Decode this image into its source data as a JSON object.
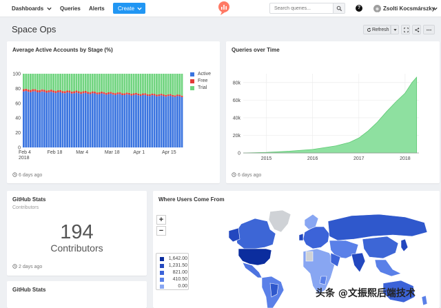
{
  "nav": {
    "dashboards_label": "Dashboards",
    "queries_label": "Queries",
    "alerts_label": "Alerts",
    "create_label": "Create",
    "search_placeholder": "Search queries...",
    "help_label": "?",
    "user_name": "Zsolti Kocsmárszky"
  },
  "page": {
    "title": "Space Ops",
    "refresh_label": "Refresh"
  },
  "colors": {
    "accent": "#2196f3",
    "active": "#3a74e0",
    "free": "#e23b37",
    "trial": "#70d47f",
    "area": "#8ee0a0"
  },
  "widgets": {
    "accounts": {
      "title": "Average Active Accounts by Stage (%)",
      "updated": "6 days ago"
    },
    "queries": {
      "title": "Queries over Time",
      "updated": "6 days ago"
    },
    "github1": {
      "title": "GitHub Stats",
      "subtitle": "Contributors",
      "value": "194",
      "value_label": "Contributors",
      "updated": "2 days ago"
    },
    "users_map": {
      "title": "Where Users Come From",
      "zoom_in": "+",
      "zoom_out": "−",
      "scale": [
        "1,642.00",
        "1,231.50",
        "821.00",
        "410.50",
        "0.00"
      ],
      "scale_colors": [
        "#0b2d9e",
        "#2348bf",
        "#3c63d8",
        "#5a80e8",
        "#88a6f2"
      ]
    },
    "github2": {
      "title": "GitHub Stats"
    }
  },
  "watermark": "头条 @文振熙后端技术",
  "chart_data": [
    {
      "type": "bar",
      "stacked": true,
      "title": "Average Active Accounts by Stage (%)",
      "x_tick_labels": [
        "Feb 4\n2018",
        "Feb 18",
        "Mar 4",
        "Mar 18",
        "Apr 1",
        "Apr 15"
      ],
      "ylim": [
        0,
        100
      ],
      "y_ticks": [
        0,
        20,
        40,
        60,
        80,
        100
      ],
      "legend_position": "right",
      "days": 70,
      "series": [
        {
          "name": "Active",
          "color": "#3a74e0",
          "start": 76,
          "end": 69
        },
        {
          "name": "Free",
          "color": "#e23b37",
          "start": 3,
          "end": 2
        },
        {
          "name": "Trial",
          "color": "#70d47f",
          "start": 21,
          "end": 29
        }
      ]
    },
    {
      "type": "area",
      "title": "Queries over Time",
      "x": [
        2014.5,
        2015.0,
        2015.5,
        2016.0,
        2016.5,
        2016.8,
        2017.0,
        2017.2,
        2017.4,
        2017.6,
        2017.8,
        2018.0,
        2018.15,
        2018.25
      ],
      "y": [
        0,
        700,
        2000,
        4000,
        8000,
        12000,
        17000,
        25000,
        35000,
        47000,
        58000,
        68000,
        80000,
        86000
      ],
      "xlim": [
        2014.5,
        2018.3
      ],
      "ylim": [
        0,
        90000
      ],
      "x_ticks": [
        "2015",
        "2016",
        "2017",
        "2018"
      ],
      "y_ticks": [
        "0",
        "20k",
        "40k",
        "60k",
        "80k"
      ],
      "y_tick_values": [
        0,
        20000,
        40000,
        60000,
        80000
      ]
    }
  ]
}
